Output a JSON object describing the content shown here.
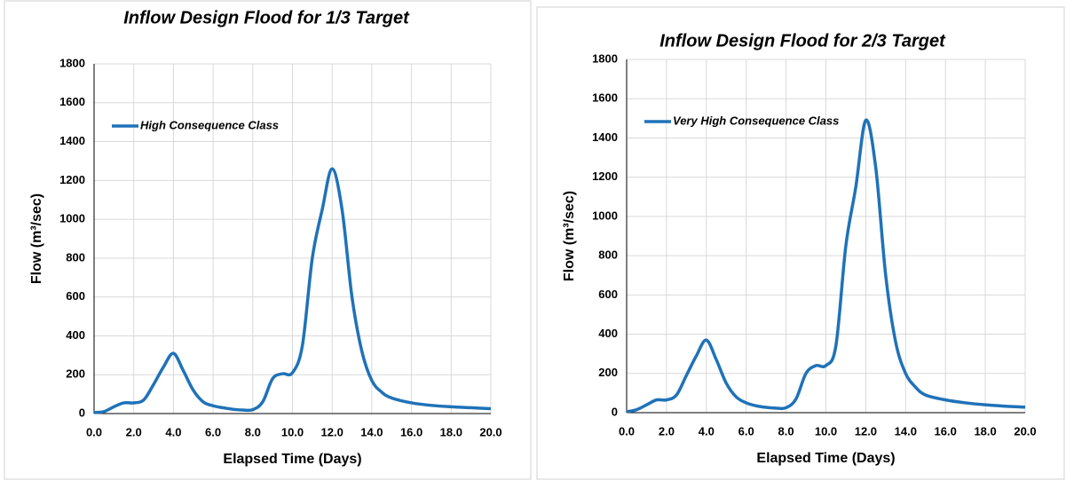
{
  "chart_data": [
    {
      "type": "line",
      "title": "Inflow Design Flood for 1/3 Target",
      "xlabel": "Elapsed Time (Days)",
      "ylabel": "Flow (m³/sec)",
      "x": [
        0,
        0.5,
        1,
        1.5,
        2,
        2.5,
        3,
        3.5,
        4,
        4.5,
        5,
        5.5,
        6,
        6.5,
        7,
        7.5,
        8,
        8.5,
        9,
        9.5,
        10,
        10.5,
        11,
        11.5,
        12,
        12.5,
        13,
        13.5,
        14,
        14.5,
        15,
        16,
        17,
        18,
        19,
        20
      ],
      "series": [
        {
          "name": "High Consequence Class",
          "color": "#1f72b8",
          "values": [
            5,
            10,
            35,
            55,
            55,
            70,
            150,
            240,
            310,
            220,
            120,
            60,
            40,
            30,
            22,
            18,
            20,
            60,
            180,
            205,
            210,
            350,
            800,
            1050,
            1260,
            1050,
            600,
            320,
            170,
            110,
            80,
            55,
            42,
            35,
            30,
            25
          ]
        }
      ],
      "xlim": [
        0,
        20
      ],
      "ylim": [
        0,
        1800
      ],
      "xticks": [
        {
          "value": 0,
          "label": "0.0"
        },
        {
          "value": 2,
          "label": "2.0"
        },
        {
          "value": 4,
          "label": "4.0"
        },
        {
          "value": 6,
          "label": "6.0"
        },
        {
          "value": 8,
          "label": "8.0"
        },
        {
          "value": 10,
          "label": "10.0"
        },
        {
          "value": 12,
          "label": "12.0"
        },
        {
          "value": 14,
          "label": "14.0"
        },
        {
          "value": 16,
          "label": "16.0"
        },
        {
          "value": 18,
          "label": "18.0"
        },
        {
          "value": 20,
          "label": "20.0"
        }
      ],
      "yticks": [
        0,
        200,
        400,
        600,
        800,
        1000,
        1200,
        1400,
        1600,
        1800
      ],
      "grid": true,
      "legend": "upper-left"
    },
    {
      "type": "line",
      "title": "Inflow Design Flood for 2/3 Target",
      "xlabel": "Elapsed Time (Days)",
      "ylabel": "Flow (m³/sec)",
      "x": [
        0,
        0.5,
        1,
        1.5,
        2,
        2.5,
        3,
        3.5,
        4,
        4.5,
        5,
        5.5,
        6,
        6.5,
        7,
        7.5,
        8,
        8.5,
        9,
        9.5,
        10,
        10.5,
        11,
        11.5,
        12,
        12.5,
        13,
        13.5,
        14,
        14.5,
        15,
        16,
        17,
        18,
        19,
        20
      ],
      "series": [
        {
          "name": "Very High Consequence Class",
          "color": "#1f72b8",
          "values": [
            5,
            15,
            40,
            65,
            65,
            90,
            190,
            290,
            370,
            270,
            150,
            80,
            50,
            35,
            27,
            23,
            25,
            70,
            200,
            240,
            240,
            340,
            850,
            1150,
            1490,
            1250,
            700,
            360,
            200,
            130,
            90,
            65,
            50,
            40,
            33,
            28
          ]
        }
      ],
      "xlim": [
        0,
        20
      ],
      "ylim": [
        0,
        1800
      ],
      "xticks": [
        {
          "value": 0,
          "label": "0.0"
        },
        {
          "value": 2,
          "label": "2.0"
        },
        {
          "value": 4,
          "label": "4.0"
        },
        {
          "value": 6,
          "label": "6.0"
        },
        {
          "value": 8,
          "label": "8.0"
        },
        {
          "value": 10,
          "label": "10.0"
        },
        {
          "value": 12,
          "label": "12.0"
        },
        {
          "value": 14,
          "label": "14.0"
        },
        {
          "value": 16,
          "label": "16.0"
        },
        {
          "value": 18,
          "label": "18.0"
        },
        {
          "value": 20,
          "label": "20.0"
        }
      ],
      "yticks": [
        0,
        200,
        400,
        600,
        800,
        1000,
        1200,
        1400,
        1600,
        1800
      ],
      "grid": true,
      "legend": "upper-left"
    }
  ]
}
